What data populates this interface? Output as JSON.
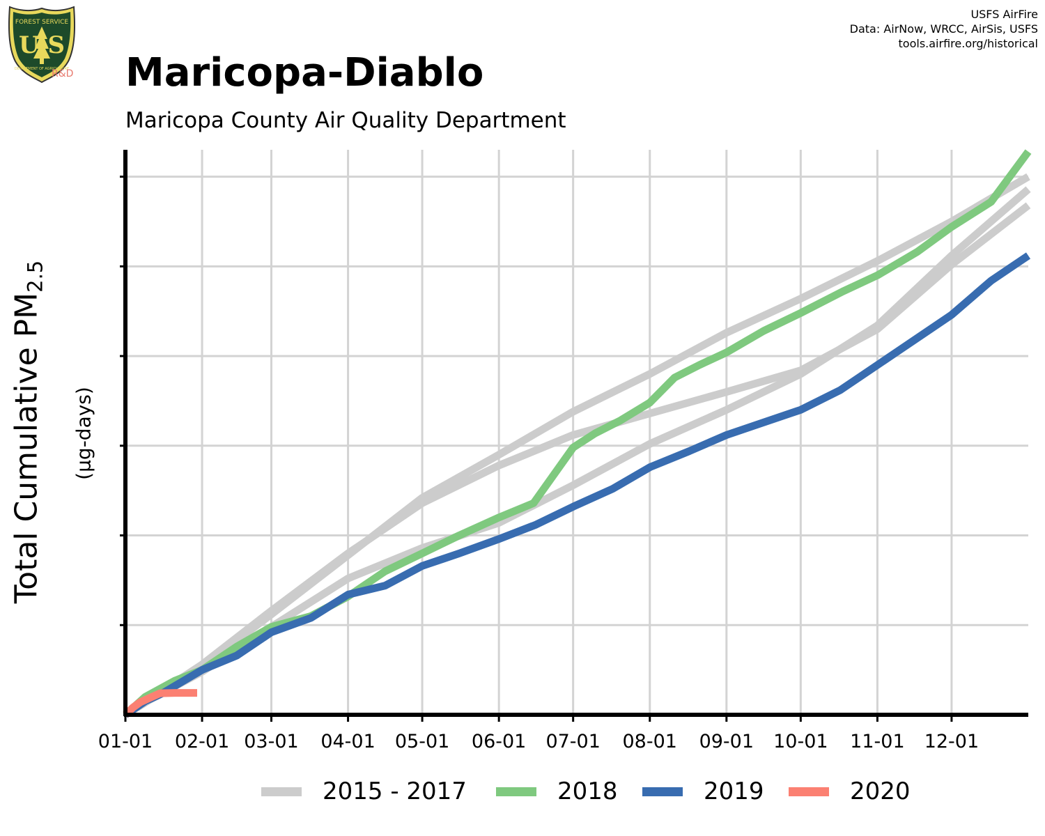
{
  "header": {
    "title": "Maricopa-Diablo",
    "subtitle": "Maricopa County Air Quality Department"
  },
  "credits": [
    "USFS AirFire",
    "Data: AirNow, WRCC, AirSis, USFS",
    "tools.airfire.org/historical"
  ],
  "logo": {
    "top_text": "FOREST SERVICE",
    "letters": "U S",
    "bottom_text": "DEPARTMENT OF AGRICULTURE",
    "tag": "R&D",
    "icon": "usfs-shield-icon"
  },
  "chart_data": {
    "type": "line",
    "title": "Maricopa-Diablo",
    "subtitle": "Maricopa County Air Quality Department",
    "ylabel": {
      "main": "Total Cumulative PM",
      "sub": "2.5",
      "units": "(µg-days)"
    },
    "xlabel": "",
    "x_ticks": [
      "01-01",
      "02-01",
      "03-01",
      "04-01",
      "05-01",
      "06-01",
      "07-01",
      "08-01",
      "09-01",
      "10-01",
      "11-01",
      "12-01"
    ],
    "x_tick_days": [
      0,
      31,
      59,
      90,
      120,
      151,
      181,
      212,
      243,
      273,
      304,
      334
    ],
    "xlim_days": [
      0,
      365
    ],
    "y_tick_labels_visible": false,
    "ylim": [
      0,
      3150
    ],
    "y_gridlines": [
      0,
      500,
      1000,
      1500,
      2000,
      2500,
      3000
    ],
    "grid": true,
    "legend_position": "bottom",
    "series": [
      {
        "name": "2015 - 2017",
        "color": "#cccccc",
        "points": [
          [
            0,
            0
          ],
          [
            10,
            95
          ],
          [
            31,
            270
          ],
          [
            59,
            560
          ],
          [
            90,
            890
          ],
          [
            120,
            1210
          ],
          [
            151,
            1450
          ],
          [
            181,
            1690
          ],
          [
            212,
            1900
          ],
          [
            243,
            2130
          ],
          [
            273,
            2320
          ],
          [
            304,
            2530
          ],
          [
            334,
            2750
          ],
          [
            365,
            3000
          ]
        ]
      },
      {
        "name": "2015 - 2017",
        "color": "#cccccc",
        "points": [
          [
            0,
            0
          ],
          [
            10,
            85
          ],
          [
            31,
            240
          ],
          [
            59,
            490
          ],
          [
            90,
            760
          ],
          [
            120,
            930
          ],
          [
            151,
            1070
          ],
          [
            181,
            1280
          ],
          [
            212,
            1510
          ],
          [
            243,
            1700
          ],
          [
            273,
            1900
          ],
          [
            304,
            2170
          ],
          [
            334,
            2560
          ],
          [
            365,
            2930
          ]
        ]
      },
      {
        "name": "2015 - 2017",
        "color": "#cccccc",
        "points": [
          [
            0,
            0
          ],
          [
            10,
            90
          ],
          [
            31,
            280
          ],
          [
            59,
            580
          ],
          [
            90,
            900
          ],
          [
            120,
            1180
          ],
          [
            151,
            1390
          ],
          [
            181,
            1560
          ],
          [
            212,
            1680
          ],
          [
            243,
            1800
          ],
          [
            273,
            1920
          ],
          [
            304,
            2150
          ],
          [
            334,
            2510
          ],
          [
            365,
            2840
          ]
        ]
      },
      {
        "name": "2018",
        "color": "#7fc97f",
        "points": [
          [
            0,
            0
          ],
          [
            8,
            100
          ],
          [
            20,
            190
          ],
          [
            31,
            250
          ],
          [
            45,
            380
          ],
          [
            59,
            490
          ],
          [
            75,
            550
          ],
          [
            90,
            660
          ],
          [
            105,
            800
          ],
          [
            120,
            900
          ],
          [
            135,
            1000
          ],
          [
            151,
            1100
          ],
          [
            165,
            1180
          ],
          [
            181,
            1490
          ],
          [
            190,
            1570
          ],
          [
            200,
            1640
          ],
          [
            212,
            1740
          ],
          [
            222,
            1880
          ],
          [
            232,
            1950
          ],
          [
            243,
            2020
          ],
          [
            258,
            2140
          ],
          [
            273,
            2240
          ],
          [
            290,
            2360
          ],
          [
            304,
            2450
          ],
          [
            320,
            2580
          ],
          [
            334,
            2720
          ],
          [
            350,
            2860
          ],
          [
            365,
            3140
          ]
        ]
      },
      {
        "name": "2019",
        "color": "#386cb0",
        "points": [
          [
            0,
            0
          ],
          [
            8,
            75
          ],
          [
            15,
            120
          ],
          [
            31,
            250
          ],
          [
            45,
            330
          ],
          [
            59,
            460
          ],
          [
            75,
            540
          ],
          [
            90,
            670
          ],
          [
            105,
            720
          ],
          [
            120,
            830
          ],
          [
            135,
            900
          ],
          [
            151,
            980
          ],
          [
            166,
            1060
          ],
          [
            181,
            1160
          ],
          [
            197,
            1260
          ],
          [
            212,
            1380
          ],
          [
            228,
            1470
          ],
          [
            243,
            1560
          ],
          [
            258,
            1630
          ],
          [
            273,
            1700
          ],
          [
            289,
            1810
          ],
          [
            304,
            1950
          ],
          [
            319,
            2090
          ],
          [
            334,
            2230
          ],
          [
            350,
            2420
          ],
          [
            365,
            2560
          ]
        ]
      },
      {
        "name": "2020",
        "color": "#fb8072",
        "points": [
          [
            0,
            0
          ],
          [
            3,
            40
          ],
          [
            6,
            70
          ],
          [
            10,
            95
          ],
          [
            14,
            120
          ],
          [
            20,
            122
          ],
          [
            29,
            122
          ]
        ]
      }
    ],
    "legend": [
      {
        "name": "2015 - 2017",
        "color": "#cccccc"
      },
      {
        "name": "2018",
        "color": "#7fc97f"
      },
      {
        "name": "2019",
        "color": "#386cb0"
      },
      {
        "name": "2020",
        "color": "#fb8072"
      }
    ]
  }
}
